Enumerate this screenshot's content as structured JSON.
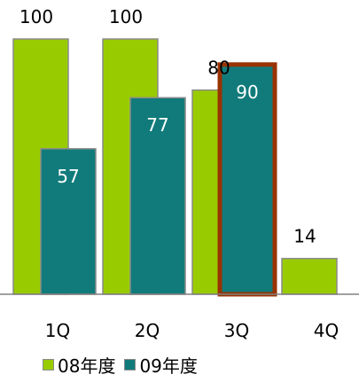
{
  "chart_data": {
    "type": "bar",
    "categories": [
      "1Q",
      "2Q",
      "3Q",
      "4Q"
    ],
    "series": [
      {
        "name": "08年度",
        "values": [
          100,
          100,
          80,
          14
        ],
        "color": "#99cc00"
      },
      {
        "name": "09年度",
        "values": [
          57,
          77,
          90,
          null
        ],
        "color": "#117b7b"
      }
    ],
    "highlight": {
      "series": 1,
      "category": 2,
      "color": "#993300"
    },
    "ylim": [
      0,
      100
    ],
    "title": "",
    "xlabel": "",
    "ylabel": "",
    "grid": false,
    "legend_position": "bottom"
  }
}
